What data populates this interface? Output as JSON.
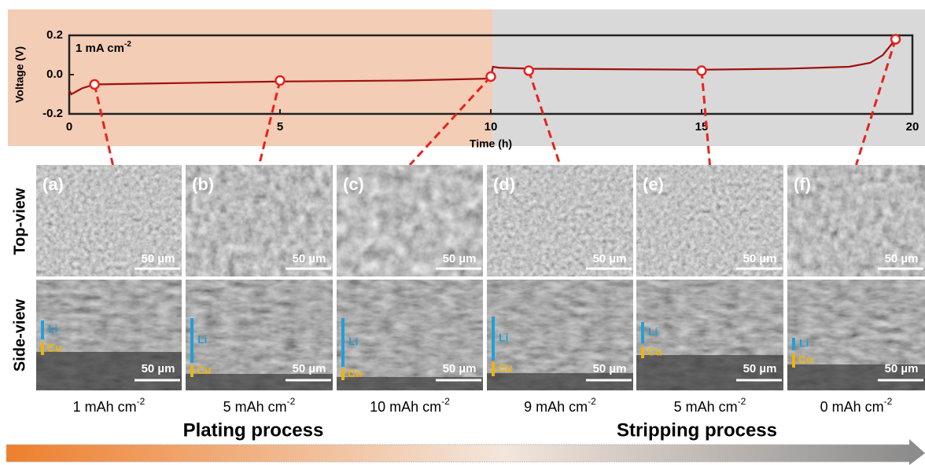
{
  "chart_data": {
    "type": "line",
    "x_label": "Time (h)",
    "y_label": "Voltage (V)",
    "annotation": {
      "text": "1 mA cm",
      "sup": "-2"
    },
    "x": [
      0,
      0.05,
      0.3,
      0.6,
      2,
      5,
      8,
      10,
      10.05,
      10.2,
      11,
      15,
      17,
      18.5,
      19,
      19.3,
      19.6
    ],
    "values": [
      -0.08,
      -0.1,
      -0.07,
      -0.05,
      -0.045,
      -0.035,
      -0.03,
      -0.02,
      0.04,
      0.035,
      0.03,
      0.025,
      0.03,
      0.04,
      0.06,
      0.1,
      0.18
    ],
    "color": "#a01010",
    "points": {
      "x": [
        0.6,
        5,
        10,
        10.9,
        15,
        19.6
      ],
      "values": [
        -0.05,
        -0.03,
        -0.01,
        0.02,
        0.02,
        0.18
      ],
      "color": "#e8231c"
    },
    "xlim": [
      0,
      20
    ],
    "ylim": [
      -0.2,
      0.2
    ],
    "xticks": [
      0,
      5,
      10,
      15,
      20
    ],
    "yticks": [
      -0.2,
      {
        "value": 0,
        "label": "0.0"
      },
      0.2
    ]
  },
  "row_labels": [
    "Top-view",
    "Side-view"
  ],
  "panels": [
    {
      "label": "(a)",
      "top_scale": "50 µm",
      "side_scale": "50 µm",
      "li": "Li",
      "cu": "Cu",
      "capacity": "1 mAh cm",
      "capacity_sup": "-2"
    },
    {
      "label": "(b)",
      "top_scale": "50 µm",
      "side_scale": "50 µm",
      "li": "Li",
      "cu": "Cu",
      "capacity": "5 mAh cm",
      "capacity_sup": "-2"
    },
    {
      "label": "(c)",
      "top_scale": "50 µm",
      "side_scale": "50 µm",
      "li": "Li",
      "cu": "Cu",
      "capacity": "10 mAh cm",
      "capacity_sup": "-2"
    },
    {
      "label": "(d)",
      "top_scale": "50 µm",
      "side_scale": "50 µm",
      "li": "Li",
      "cu": "Cu",
      "capacity": "9 mAh cm",
      "capacity_sup": "-2"
    },
    {
      "label": "(e)",
      "top_scale": "50 µm",
      "side_scale": "50 µm",
      "li": "Li",
      "cu": "Cu",
      "capacity": "5 mAh cm",
      "capacity_sup": "-2"
    },
    {
      "label": "(f)",
      "top_scale": "50 µm",
      "side_scale": "50 µm",
      "li": "Li",
      "cu": "Cu",
      "capacity": "0 mAh cm",
      "capacity_sup": "-2"
    }
  ],
  "processes": [
    "Plating process",
    "Stripping process"
  ]
}
